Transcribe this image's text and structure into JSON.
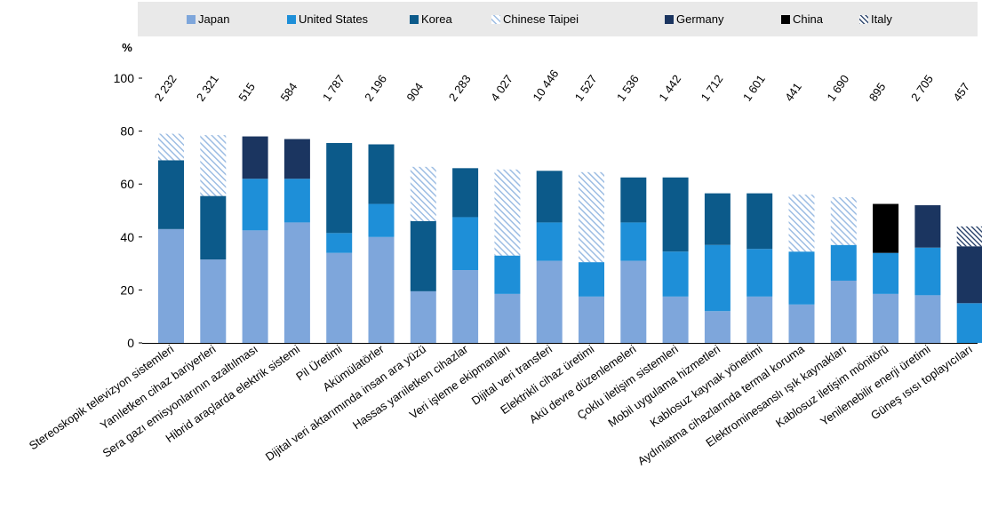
{
  "chart_data": {
    "type": "bar",
    "stacked": true,
    "ylabel": "%",
    "ylim": [
      0,
      100
    ],
    "yticks": [
      0,
      20,
      40,
      60,
      80,
      100
    ],
    "legend_position": "top",
    "grid": false,
    "series_styles": [
      {
        "name": "Japan",
        "color": "#7ea6db",
        "pattern": "solid"
      },
      {
        "name": "United States",
        "color": "#1e8fd8",
        "pattern": "solid"
      },
      {
        "name": "Korea",
        "color": "#0c5a8a",
        "pattern": "solid"
      },
      {
        "name": "Chinese Taipei",
        "color": "#9dbde3",
        "pattern": "hatch"
      },
      {
        "name": "Germany",
        "color": "#1b3560",
        "pattern": "solid"
      },
      {
        "name": "China",
        "color": "#000000",
        "pattern": "solid"
      },
      {
        "name": "Italy",
        "color": "#1b3560",
        "pattern": "hatch"
      }
    ],
    "categories": [
      "Stereoskopik televizyon sistemleri",
      "Yanıletken cihaz bariyerleri",
      "Sera gazı emisyonlarının azaltılması",
      "Hibrid araçlarda elektrik sistemi",
      "Pil Üretimi",
      "Akümülatörler",
      "Dijital veri aktarımında insan ara yüzü",
      "Hassas yarıiletken cihazlar",
      "Veri işleme ekipmanları",
      "Dijital veri transferi",
      "Elektrikli cihaz üretimi",
      "Akü devre düzenlemeleri",
      "Çoklu iletişim sistemleri",
      "Mobil uygulama hizmetleri",
      "Kablosuz kaynak yönetimi",
      "Aydınlatma cihazlarında termal koruma",
      "Elektrominesanslı ışık kaynakları",
      "Kablosuz iletişim mönitörü",
      "Yenilenebilir enerji üretimi",
      "Güneş ısısı toplayıcıları"
    ],
    "totals": [
      "2 232",
      "2 321",
      "515",
      "584",
      "1 787",
      "2 196",
      "904",
      "2 283",
      "4 027",
      "10 446",
      "1 527",
      "1 536",
      "1 442",
      "1 712",
      "1 601",
      "441",
      "1 690",
      "895",
      "2 705",
      "457"
    ],
    "bars": [
      [
        {
          "series": "Japan",
          "value": 43
        },
        {
          "series": "Korea",
          "value": 26
        },
        {
          "series": "Chinese Taipei",
          "value": 10
        }
      ],
      [
        {
          "series": "Japan",
          "value": 31.5
        },
        {
          "series": "Korea",
          "value": 24
        },
        {
          "series": "Chinese Taipei",
          "value": 23
        }
      ],
      [
        {
          "series": "Japan",
          "value": 42.5
        },
        {
          "series": "United States",
          "value": 19.5
        },
        {
          "series": "Germany",
          "value": 16
        }
      ],
      [
        {
          "series": "Japan",
          "value": 45.5
        },
        {
          "series": "United States",
          "value": 16.5
        },
        {
          "series": "Germany",
          "value": 15
        }
      ],
      [
        {
          "series": "Japan",
          "value": 34
        },
        {
          "series": "United States",
          "value": 7.5
        },
        {
          "series": "Korea",
          "value": 34
        }
      ],
      [
        {
          "series": "Japan",
          "value": 40
        },
        {
          "series": "United States",
          "value": 12.5
        },
        {
          "series": "Korea",
          "value": 22.5
        }
      ],
      [
        {
          "series": "Japan",
          "value": 19.5
        },
        {
          "series": "Korea",
          "value": 26.5
        },
        {
          "series": "Chinese Taipei",
          "value": 20.5
        }
      ],
      [
        {
          "series": "Japan",
          "value": 27.5
        },
        {
          "series": "United States",
          "value": 20
        },
        {
          "series": "Korea",
          "value": 18.5
        }
      ],
      [
        {
          "series": "Japan",
          "value": 18.5
        },
        {
          "series": "United States",
          "value": 14.5
        },
        {
          "series": "Chinese Taipei",
          "value": 32.5
        }
      ],
      [
        {
          "series": "Japan",
          "value": 31
        },
        {
          "series": "United States",
          "value": 14.5
        },
        {
          "series": "Korea",
          "value": 19.5
        }
      ],
      [
        {
          "series": "Japan",
          "value": 17.5
        },
        {
          "series": "United States",
          "value": 13
        },
        {
          "series": "Chinese Taipei",
          "value": 34
        }
      ],
      [
        {
          "series": "Japan",
          "value": 31
        },
        {
          "series": "United States",
          "value": 14.5
        },
        {
          "series": "Korea",
          "value": 17
        }
      ],
      [
        {
          "series": "Japan",
          "value": 17.5
        },
        {
          "series": "United States",
          "value": 17
        },
        {
          "series": "Korea",
          "value": 28
        }
      ],
      [
        {
          "series": "Japan",
          "value": 12
        },
        {
          "series": "United States",
          "value": 25
        },
        {
          "series": "Korea",
          "value": 19.5
        }
      ],
      [
        {
          "series": "Japan",
          "value": 17.5
        },
        {
          "series": "United States",
          "value": 18
        },
        {
          "series": "Korea",
          "value": 21
        }
      ],
      [
        {
          "series": "Japan",
          "value": 14.5
        },
        {
          "series": "United States",
          "value": 20
        },
        {
          "series": "Chinese Taipei",
          "value": 21.5
        }
      ],
      [
        {
          "series": "Japan",
          "value": 23.5
        },
        {
          "series": "United States",
          "value": 13.5
        },
        {
          "series": "Chinese Taipei",
          "value": 18
        }
      ],
      [
        {
          "series": "Japan",
          "value": 18.5
        },
        {
          "series": "United States",
          "value": 15.5
        },
        {
          "series": "China",
          "value": 18.5
        }
      ],
      [
        {
          "series": "Japan",
          "value": 18
        },
        {
          "series": "United States",
          "value": 18
        },
        {
          "series": "Germany",
          "value": 16
        }
      ],
      [
        {
          "series": "United States",
          "value": 15
        },
        {
          "series": "Germany",
          "value": 21.5
        },
        {
          "series": "Italy",
          "value": 7.5
        }
      ]
    ]
  }
}
